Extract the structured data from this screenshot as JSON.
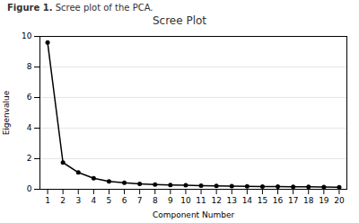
{
  "chart_data": {
    "type": "line",
    "title": "Scree Plot",
    "caption": [
      {
        "text": "Figure 1.",
        "bold": true
      },
      {
        "text": " Scree plot of the PCA.",
        "bold": false
      }
    ],
    "xlabel": "Component Number",
    "ylabel": "Eigenvalue",
    "x": [
      1,
      2,
      3,
      4,
      5,
      6,
      7,
      8,
      9,
      10,
      11,
      12,
      13,
      14,
      15,
      16,
      17,
      18,
      19,
      20
    ],
    "values": [
      9.6,
      1.75,
      1.1,
      0.72,
      0.52,
      0.42,
      0.36,
      0.31,
      0.28,
      0.26,
      0.24,
      0.22,
      0.21,
      0.19,
      0.18,
      0.17,
      0.16,
      0.155,
      0.145,
      0.135
    ],
    "marker": "circle",
    "xlim": [
      0.5,
      20.5
    ],
    "xticks": [
      1,
      2,
      3,
      4,
      5,
      6,
      7,
      8,
      9,
      10,
      11,
      12,
      13,
      14,
      15,
      16,
      17,
      18,
      19,
      20
    ],
    "ylim": [
      0,
      10
    ],
    "yticks": [
      0,
      2,
      4,
      6,
      8,
      10
    ],
    "grid": true
  }
}
